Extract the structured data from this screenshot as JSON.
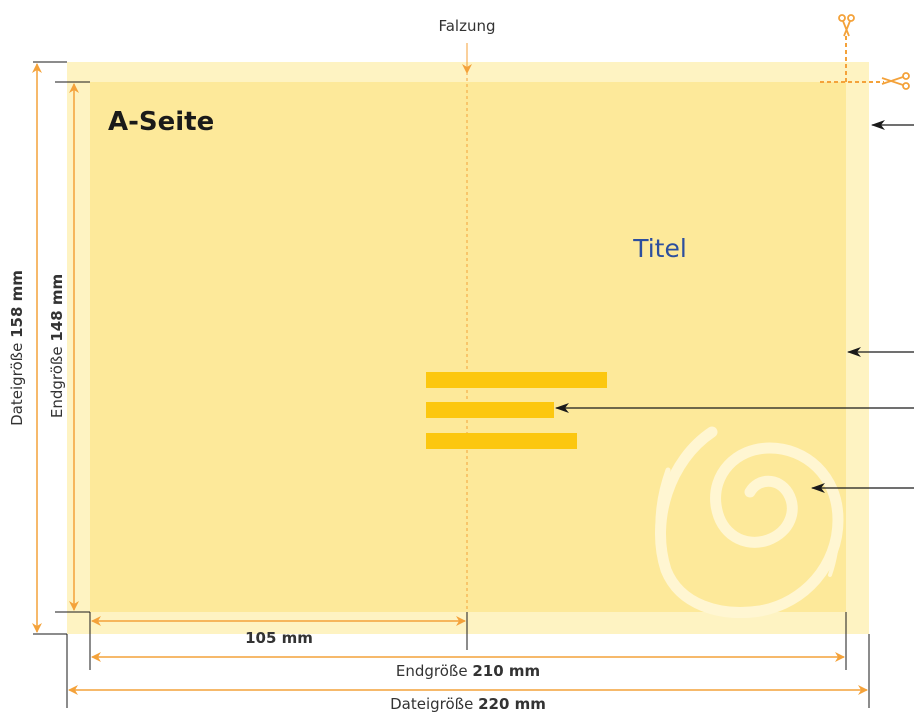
{
  "fold": {
    "label": "Falzung"
  },
  "page": {
    "side_label": "A-Seite",
    "title": "Titel"
  },
  "dimensions": {
    "half_width": "105 mm",
    "final_width_prefix": "Endgröße ",
    "final_width_value": "210 mm",
    "file_width_prefix": "Dateigröße ",
    "file_width_value": "220 mm",
    "final_height_prefix": "Endgröße ",
    "final_height_value": "148 mm",
    "file_height_prefix": "Dateigröße ",
    "file_height_value": "158 mm"
  },
  "icons": [
    "scissors-icon",
    "scissors-icon",
    "swirl-icon"
  ],
  "colors": {
    "bleed": "#FEF3C2",
    "trim": "#FDE99A",
    "accent": "#F4A23A",
    "bar": "#FCC70F",
    "title": "#2D4F9E",
    "swirl": "#FFF6D2",
    "arrow": "#1A1A1A"
  }
}
